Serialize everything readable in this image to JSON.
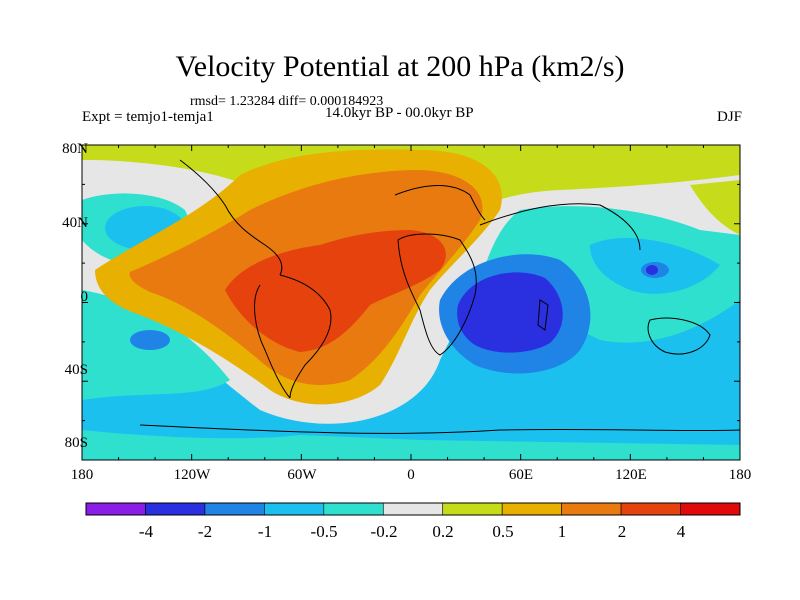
{
  "title": "Velocity Potential at 200 hPa (km2/s)",
  "stats": "rmsd= 1.23284 diff= 0.000184923",
  "experiment": "Expt = temjo1-temja1",
  "period": "14.0kyr BP - 00.0kyr BP",
  "season": "DJF",
  "axes": {
    "y_labels": [
      "80N",
      "40N",
      "0",
      "40S",
      "80S"
    ],
    "x_labels": [
      "180",
      "120W",
      "60W",
      "0",
      "60E",
      "120E",
      "180"
    ]
  },
  "colorbar": {
    "colors": [
      "#8a1ee6",
      "#2a2fe0",
      "#1f84e6",
      "#1cc0ee",
      "#30e0cf",
      "#e6e6e6",
      "#c6dc1a",
      "#e8b000",
      "#e87a10",
      "#e6420e",
      "#e00a0a"
    ],
    "labels": [
      "-4",
      "-2",
      "-1",
      "-0.5",
      "-0.2",
      "0.2",
      "0.5",
      "1",
      "2",
      "4"
    ]
  }
}
